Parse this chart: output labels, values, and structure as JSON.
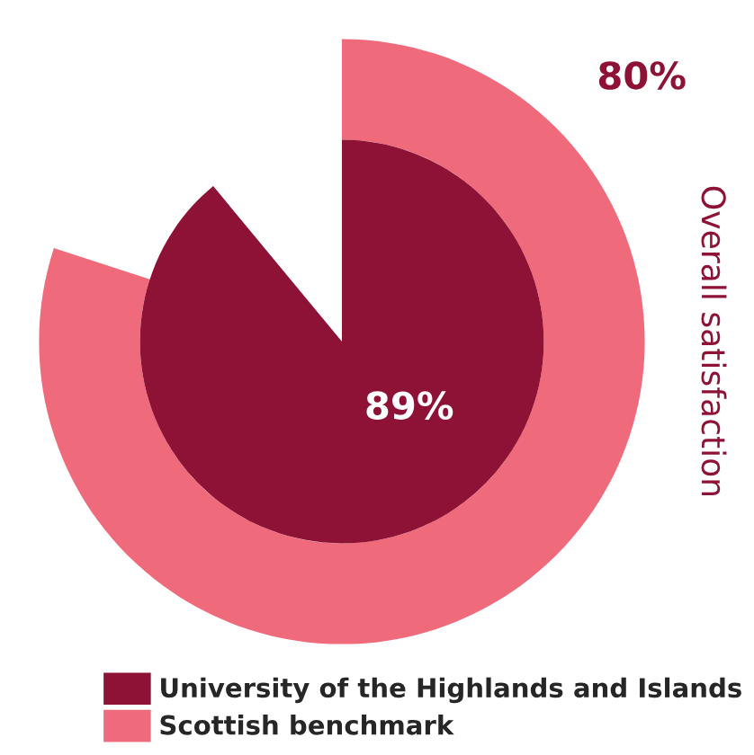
{
  "chart_data": {
    "type": "donut",
    "title": "Overall satisfaction",
    "series": [
      {
        "name": "University of the Highlands and Islands",
        "color": "#8e1236",
        "values": [
          89
        ],
        "value_labels": [
          "89%"
        ]
      },
      {
        "name": "Scottish benchmark",
        "color": "#ef6a7a",
        "values": [
          80
        ],
        "value_labels": [
          "80%"
        ]
      }
    ],
    "legend": "bottom"
  }
}
